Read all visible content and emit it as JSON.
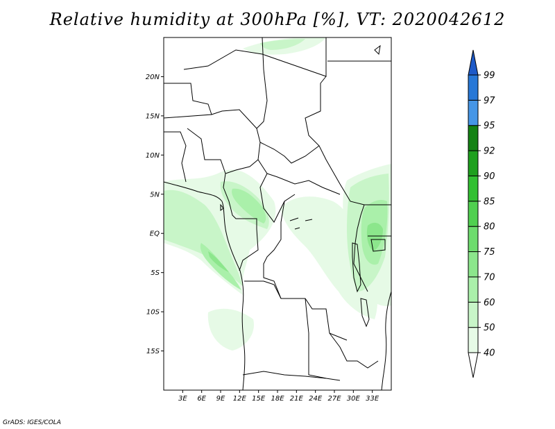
{
  "title": "Relative humidity at 300hPa [%], VT: 2020042612",
  "credit": "GrADS: IGES/COLA",
  "variable": "Relative humidity",
  "pressure_level": "300hPa",
  "valid_time": "2020042612",
  "map": {
    "lon_range": [
      0,
      36
    ],
    "lat_range": [
      -20,
      25
    ],
    "lat_ticks": [
      {
        "value": 20,
        "label": "20N"
      },
      {
        "value": 15,
        "label": "15N"
      },
      {
        "value": 10,
        "label": "10N"
      },
      {
        "value": 5,
        "label": "5N"
      },
      {
        "value": 0,
        "label": "EQ"
      },
      {
        "value": -5,
        "label": "5S"
      },
      {
        "value": -10,
        "label": "10S"
      },
      {
        "value": -15,
        "label": "15S"
      }
    ],
    "lon_ticks": [
      {
        "value": 3,
        "label": "3E"
      },
      {
        "value": 6,
        "label": "6E"
      },
      {
        "value": 9,
        "label": "9E"
      },
      {
        "value": 12,
        "label": "12E"
      },
      {
        "value": 15,
        "label": "15E"
      },
      {
        "value": 18,
        "label": "18E"
      },
      {
        "value": 21,
        "label": "21E"
      },
      {
        "value": 24,
        "label": "24E"
      },
      {
        "value": 27,
        "label": "27E"
      },
      {
        "value": 30,
        "label": "30E"
      },
      {
        "value": 33,
        "label": "33E"
      }
    ]
  },
  "colorbar": {
    "levels": [
      "40",
      "50",
      "60",
      "70",
      "75",
      "80",
      "85",
      "90",
      "92",
      "95",
      "97",
      "99"
    ],
    "colors": [
      "#ffffff",
      "#e6fae6",
      "#c8f5c8",
      "#aaf0aa",
      "#8ce68c",
      "#6edc6e",
      "#50d050",
      "#32c032",
      "#1ea01e",
      "#148214",
      "#4696e6",
      "#2878d7",
      "#1e5ac8"
    ]
  },
  "colors": {
    "coastline": "#000000",
    "background": "#ffffff"
  }
}
